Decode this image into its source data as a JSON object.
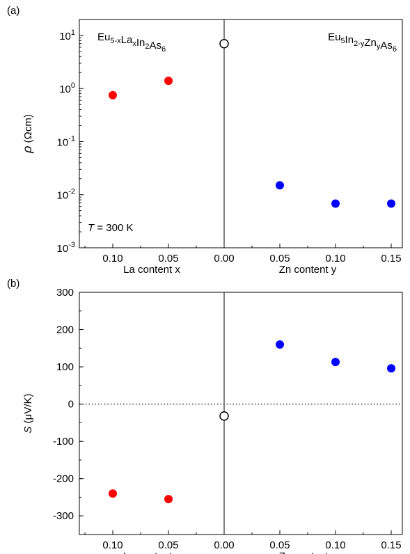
{
  "chart_data": [
    {
      "panel_label": "(a)",
      "type": "scatter",
      "y_scale": "log",
      "ylim": [
        0.001,
        20
      ],
      "yticks": [
        {
          "base": "10",
          "exp": "1",
          "value": 10
        },
        {
          "base": "10",
          "exp": "0",
          "value": 1
        },
        {
          "base": "10",
          "exp": "-1",
          "value": 0.1
        },
        {
          "base": "10",
          "exp": "-2",
          "value": 0.01
        },
        {
          "base": "10",
          "exp": "-3",
          "value": 0.001
        }
      ],
      "ylabel_symbol": "ρ",
      "ylabel_unit": "(Ωcm)",
      "xlabel_left": "La content x",
      "xlabel_right": "Zn content y",
      "xticks": [
        "0.10",
        "0.05",
        "0.00",
        "0.05",
        "0.10",
        "0.15"
      ],
      "annotation_left": {
        "parts": [
          {
            "t": "Eu",
            "s": ""
          },
          {
            "t": "5-x",
            "s": "sub"
          },
          {
            "t": "La",
            "s": ""
          },
          {
            "t": "x",
            "s": "sub"
          },
          {
            "t": "In",
            "s": ""
          },
          {
            "t": "2",
            "s": "sub"
          },
          {
            "t": "As",
            "s": ""
          },
          {
            "t": "6",
            "s": "sub"
          }
        ]
      },
      "annotation_right": {
        "parts": [
          {
            "t": "Eu",
            "s": ""
          },
          {
            "t": "5",
            "s": "sub"
          },
          {
            "t": "In",
            "s": ""
          },
          {
            "t": "2-y",
            "s": "sub"
          },
          {
            "t": "Zn",
            "s": ""
          },
          {
            "t": "y",
            "s": "sub"
          },
          {
            "t": "As",
            "s": ""
          },
          {
            "t": "6",
            "s": "sub"
          }
        ]
      },
      "temp_label": {
        "sym": "T",
        "rest": " = 300 K"
      },
      "series": [
        {
          "color": "#ff0000",
          "fill": true,
          "points": [
            {
              "x": -0.1,
              "y": 0.75
            },
            {
              "x": -0.05,
              "y": 1.4
            }
          ]
        },
        {
          "color": "#000000",
          "fill": false,
          "points": [
            {
              "x": 0.0,
              "y": 7.0
            }
          ]
        },
        {
          "color": "#0000ff",
          "fill": true,
          "points": [
            {
              "x": 0.05,
              "y": 0.015
            },
            {
              "x": 0.1,
              "y": 0.0068
            },
            {
              "x": 0.15,
              "y": 0.0068
            }
          ]
        }
      ]
    },
    {
      "panel_label": "(b)",
      "type": "scatter",
      "y_scale": "linear",
      "ylim": [
        -350,
        300
      ],
      "yticks": [
        300,
        200,
        100,
        0,
        -100,
        -200,
        -300
      ],
      "ylabel_symbol": "S",
      "ylabel_unit": "(μV/K)",
      "xlabel_left": "La content x",
      "xlabel_right": "Zn content y",
      "xticks": [
        "0.10",
        "0.05",
        "0.00",
        "0.05",
        "0.10",
        "0.15"
      ],
      "zero_line": true,
      "series": [
        {
          "color": "#ff0000",
          "fill": true,
          "points": [
            {
              "x": -0.1,
              "y": -240
            },
            {
              "x": -0.05,
              "y": -255
            }
          ]
        },
        {
          "color": "#000000",
          "fill": false,
          "points": [
            {
              "x": 0.0,
              "y": -32
            }
          ]
        },
        {
          "color": "#0000ff",
          "fill": true,
          "points": [
            {
              "x": 0.05,
              "y": 160
            },
            {
              "x": 0.1,
              "y": 113
            },
            {
              "x": 0.15,
              "y": 96
            }
          ]
        }
      ]
    }
  ]
}
